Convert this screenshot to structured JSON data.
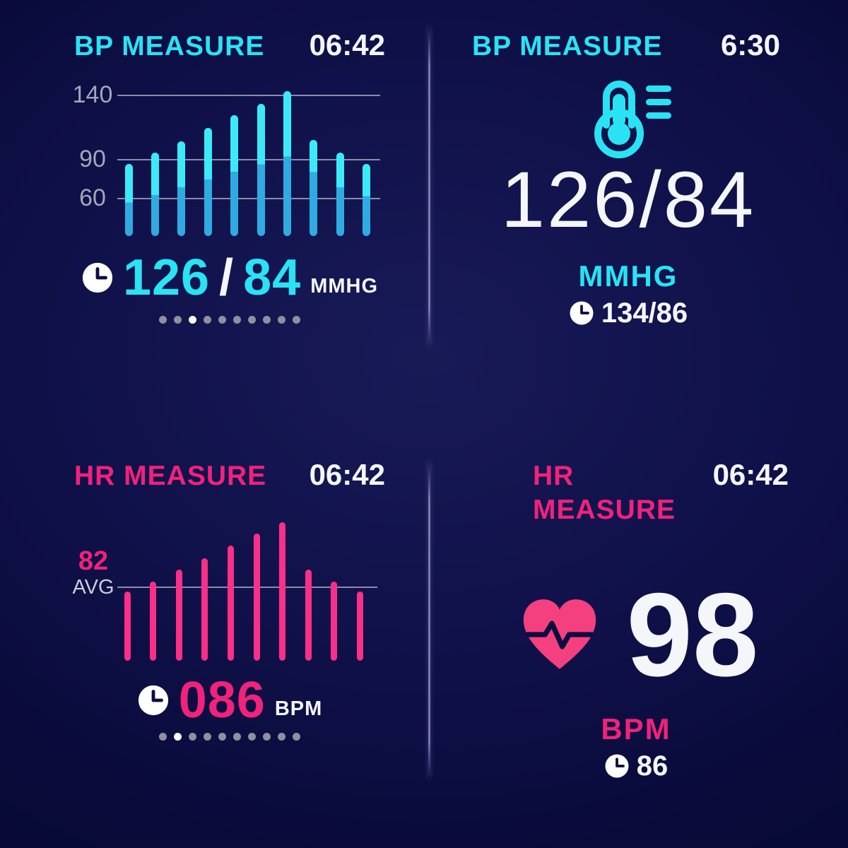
{
  "colors": {
    "background": "#10114a",
    "cyan": "#29e3f4",
    "bar_cyan_top": "#3beaf8",
    "bar_cyan_bottom": "#2fabe2",
    "pink": "#f0227a",
    "bar_pink": "#fa2f88",
    "heart_pink": "#f5407f",
    "white": "#f4f6fa",
    "gridline": "#a8acc0",
    "dot_inactive": "#8f909f",
    "dot_active": "#ffffff",
    "divider": "#8d8ac0"
  },
  "panels": {
    "bp_chart": {
      "title": "BP MEASURE",
      "time": "06:42",
      "reading": {
        "icon": "clock-icon",
        "systolic": "126",
        "slash": "/",
        "diastolic": "84",
        "unit": "MMHG"
      },
      "pagination": {
        "count": 10,
        "active_index": 2
      }
    },
    "bp_value": {
      "title": "BP MEASURE",
      "time": "6:30",
      "icon": "thermometer-gauge-icon",
      "value": "126/84",
      "unit": "MMHG",
      "previous_icon": "clock-icon",
      "previous": "134/86"
    },
    "hr_chart": {
      "title": "HR MEASURE",
      "time": "06:42",
      "avg": {
        "value": "82",
        "label": "AVG"
      },
      "reading": {
        "icon": "clock-icon",
        "value": "086",
        "unit": "BPM"
      },
      "pagination": {
        "count": 10,
        "active_index": 1
      }
    },
    "hr_value": {
      "title": "HR MEASURE",
      "time": "06:42",
      "icon": "heart-pulse-icon",
      "value": "98",
      "unit": "BPM",
      "previous_icon": "clock-icon",
      "previous": "86"
    }
  },
  "chart_data": [
    {
      "id": "bp_bars",
      "type": "bar",
      "title": "BP MEASURE",
      "yticks": [
        140,
        90,
        60
      ],
      "series": [
        {
          "name": "systolic",
          "values": [
            86,
            95,
            104,
            114,
            124,
            133,
            143,
            105,
            95,
            86
          ]
        },
        {
          "name": "diastolic",
          "values": [
            56,
            62,
            68,
            74,
            80,
            86,
            92,
            80,
            68,
            61
          ]
        }
      ],
      "bar_base_value": 30,
      "grid": true,
      "style": "rounded two-tone range bars; bright cyan above diastolic split, sky blue below; x axis unlabeled"
    },
    {
      "id": "hr_bars",
      "type": "bar",
      "title": "HR MEASURE",
      "avg_line": {
        "value": 82,
        "label": "AVG"
      },
      "values": [
        78,
        86,
        95,
        104,
        114,
        123,
        132,
        95,
        86,
        78
      ],
      "bar_base_value": 24,
      "grid": true,
      "style": "rounded solid pink bars crossing the average gridline; x axis unlabeled"
    }
  ]
}
